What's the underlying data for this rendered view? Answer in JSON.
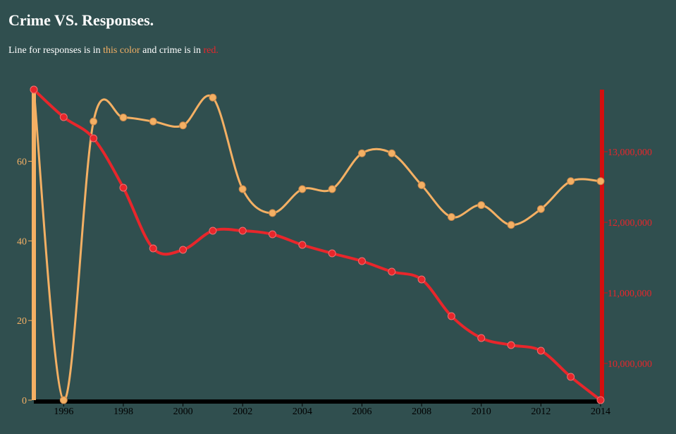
{
  "page": {
    "title": "Crime VS. Responses.",
    "subtitle": {
      "prefix": "Line for responses is in ",
      "responses_word": "this color",
      "middle": " and crime is in ",
      "crime_word": "red."
    }
  },
  "colors": {
    "background": "#304f4f",
    "responses": "#f4b064",
    "crime": "#e8262b",
    "crime_axis": "#d40f0f",
    "x_axis": "#000000"
  },
  "chart_data": {
    "type": "line",
    "x": [
      1995,
      1996,
      1997,
      1998,
      1999,
      2000,
      2001,
      2002,
      2003,
      2004,
      2005,
      2006,
      2007,
      2008,
      2009,
      2010,
      2011,
      2012,
      2013,
      2014
    ],
    "xlim": [
      1995,
      2014
    ],
    "x_ticks": [
      "1996",
      "1998",
      "2000",
      "2002",
      "2004",
      "2006",
      "2008",
      "2010",
      "2012",
      "2014"
    ],
    "series": [
      {
        "key": "responses",
        "axis": "left",
        "values": [
          78,
          0,
          70,
          71,
          70,
          69,
          76,
          53,
          47,
          53,
          53,
          62,
          62,
          54,
          46,
          49,
          44,
          48,
          55,
          55
        ]
      },
      {
        "key": "crime",
        "axis": "right",
        "values": [
          13880000,
          13490000,
          13190000,
          12490000,
          11630000,
          11610000,
          11880000,
          11880000,
          11830000,
          11680000,
          11560000,
          11450000,
          11300000,
          11190000,
          10670000,
          10360000,
          10260000,
          10180000,
          9810000,
          9480000
        ]
      }
    ],
    "y_left": {
      "lim": [
        0,
        78
      ],
      "ticks": [
        "0",
        "20",
        "40",
        "60"
      ]
    },
    "y_right": {
      "lim": [
        9480000,
        13880000
      ],
      "ticks": [
        "10,000,000",
        "11,000,000",
        "12,000,000",
        "13,000,000"
      ]
    }
  }
}
